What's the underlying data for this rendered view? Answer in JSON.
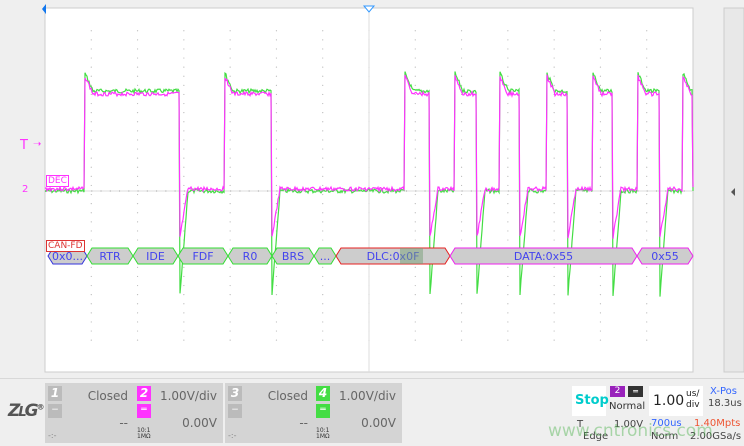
{
  "markers": {
    "trigger_level": "T",
    "channel2_ref": "2",
    "dec_tag": "DEC",
    "canfd_tag": "CAN-FD"
  },
  "decode": {
    "fields": [
      {
        "label": "0x0...",
        "color": "#3333dd"
      },
      {
        "label": "RTR",
        "color": "#33dd33"
      },
      {
        "label": "IDE",
        "color": "#33dd33"
      },
      {
        "label": "FDF",
        "color": "#33dd33"
      },
      {
        "label": "R0",
        "color": "#33dd33"
      },
      {
        "label": "BRS",
        "color": "#33dd33"
      },
      {
        "label": "...",
        "color": "#33dd33"
      },
      {
        "label": "DLC:0x0F",
        "color": "#e62020"
      },
      {
        "label": "DATA:0x55",
        "color": "#ee22ee"
      },
      {
        "label": "0x55",
        "color": "#ee22ee"
      }
    ]
  },
  "colors": {
    "ch2": "#ff33ff",
    "ch4": "#44dd44",
    "stop": "#00cccc",
    "xpos": "#3366ff",
    "mpts": "#ee5533"
  },
  "channels": [
    {
      "num": "1",
      "status": "Closed",
      "offset": "--",
      "coupling": "-",
      "extra": "-:-",
      "enabled": false
    },
    {
      "num": "2",
      "status": "1.00V/div",
      "offset": "0.00V",
      "coupling": "dc-icon",
      "probe": "10:1",
      "imp": "1MΩ",
      "enabled": true
    },
    {
      "num": "3",
      "status": "Closed",
      "offset": "--",
      "coupling": "-",
      "extra": "-:-",
      "enabled": false
    },
    {
      "num": "4",
      "status": "1.00V/div",
      "offset": "0.00V",
      "coupling": "dc-icon",
      "probe": "10:1",
      "imp": "1MΩ",
      "enabled": true
    }
  ],
  "trigger": {
    "run_state": "Stop",
    "source": "2",
    "mode": "Normal",
    "type_label": "T",
    "level": "1.00V",
    "type": "Edge"
  },
  "timebase": {
    "value": "1.00",
    "unit_top": "us/",
    "unit_bot": "div",
    "xpos_label": "X-Pos",
    "xpos": "18.3us",
    "window": "700us",
    "mem": "1.40Mpts",
    "acq": "Norm",
    "rate": "2.00GSa/s"
  },
  "logo": "ZLG",
  "watermark": "www.cntronics.com"
}
